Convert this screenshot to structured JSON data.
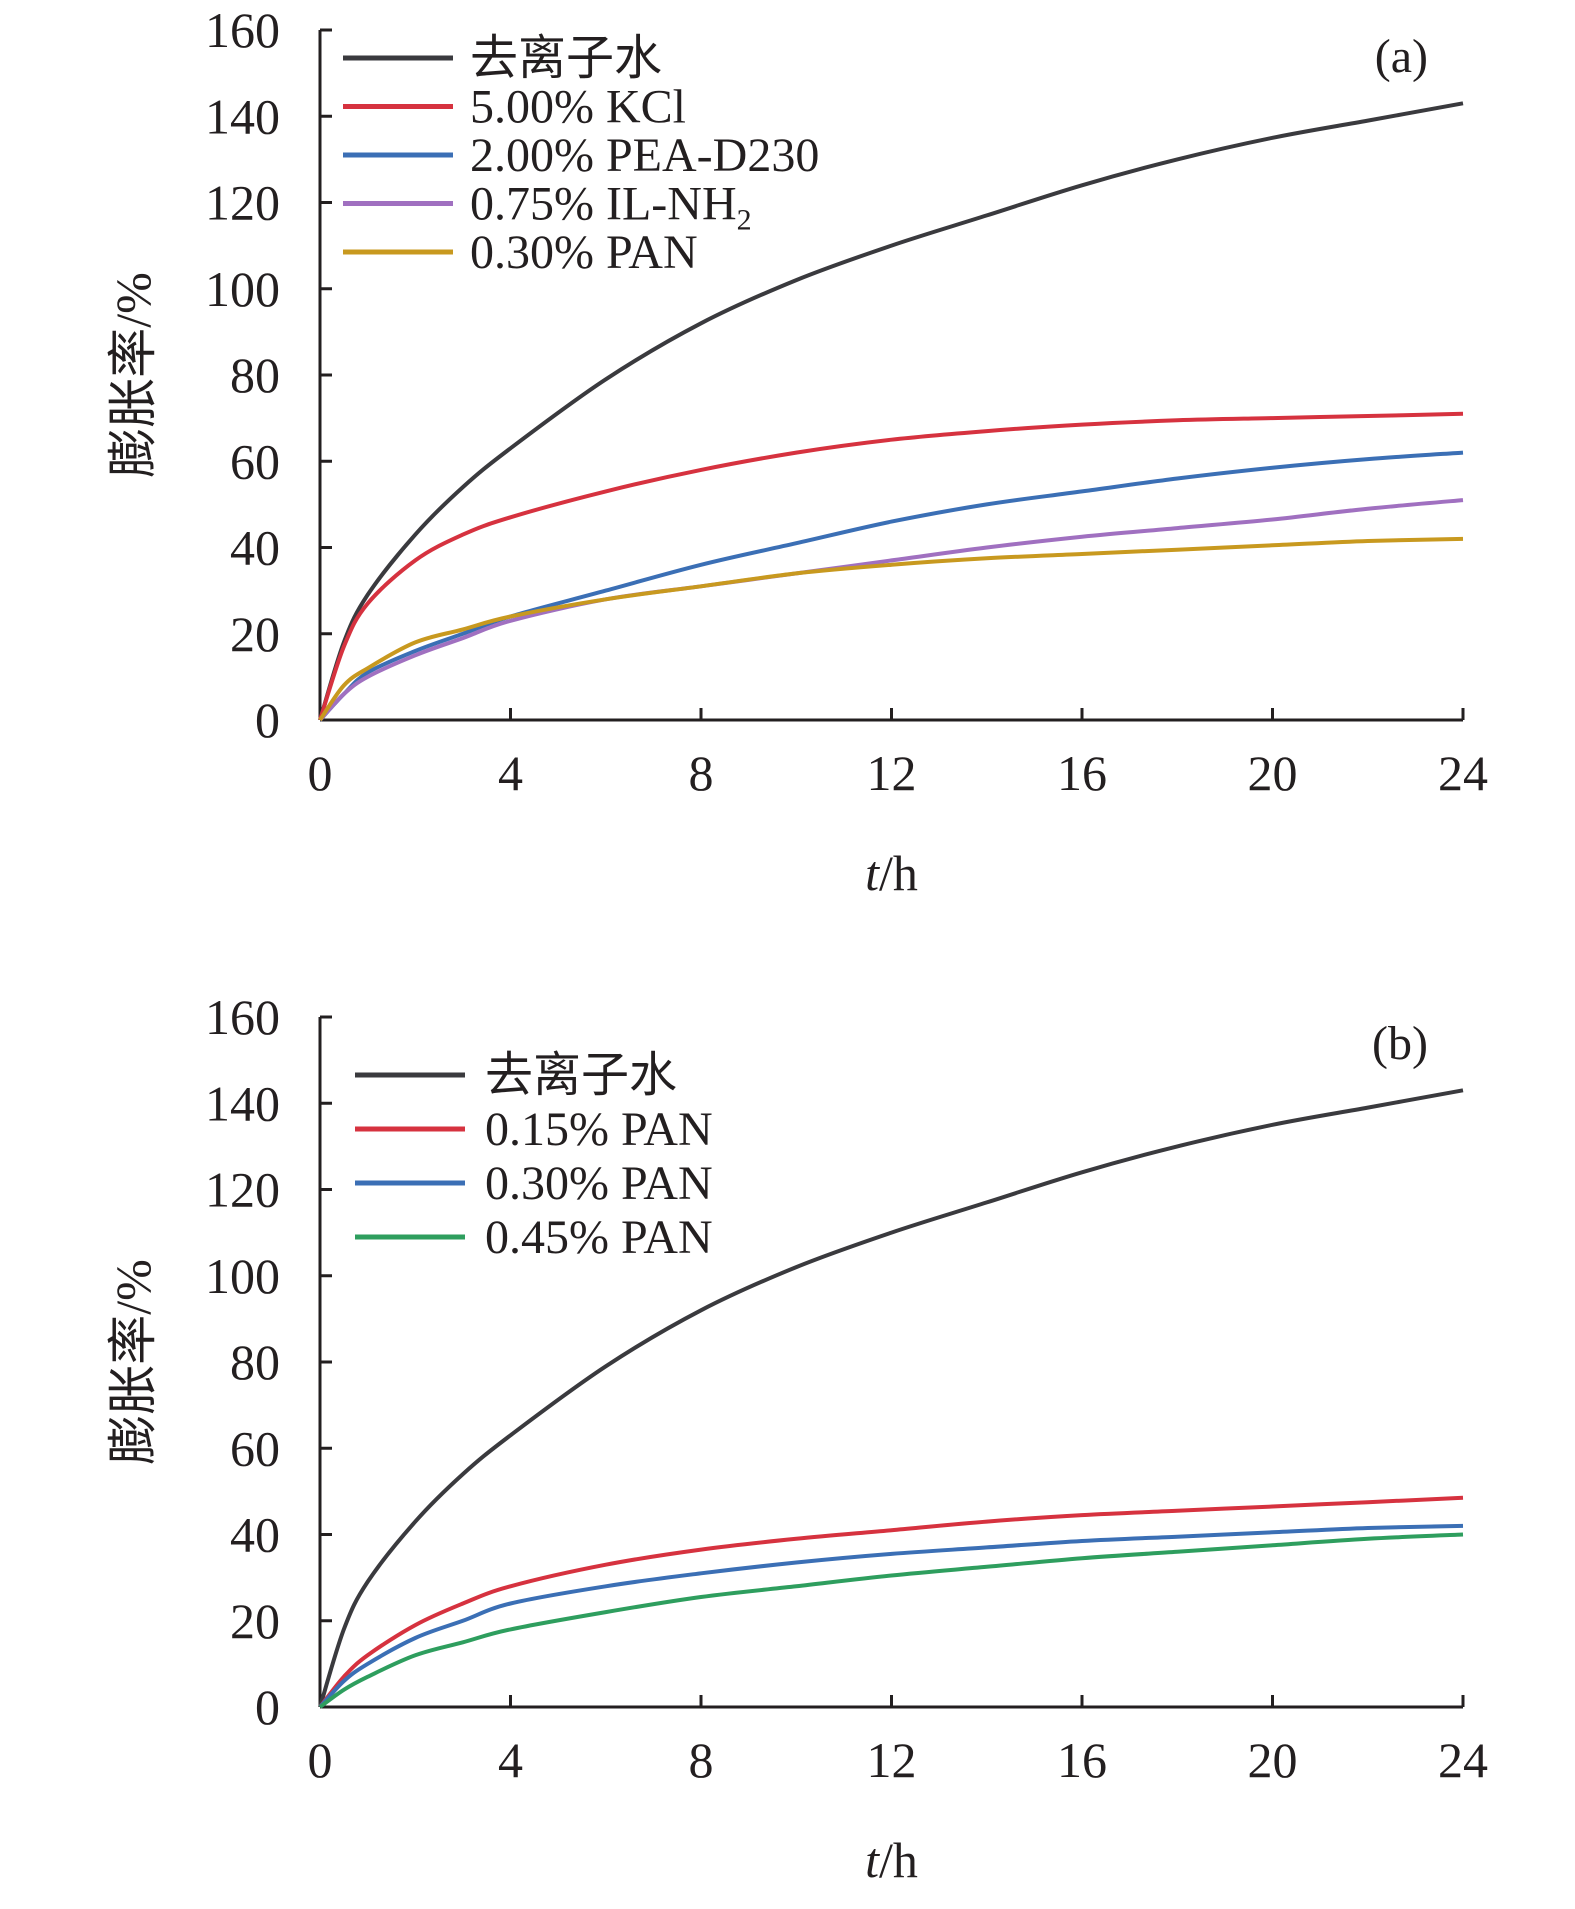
{
  "chart_data": [
    {
      "type": "line",
      "panel_label": "(a)",
      "xlabel": {
        "italic": "t",
        "rest": "/h"
      },
      "ylabel": "膨胀率/%",
      "xlim": [
        0,
        24
      ],
      "ylim": [
        0,
        160
      ],
      "xticks": [
        0,
        4,
        8,
        12,
        16,
        20,
        24
      ],
      "yticks": [
        0,
        20,
        40,
        60,
        80,
        100,
        120,
        140,
        160
      ],
      "grid": false,
      "legend_position": "top-left",
      "x": [
        0,
        0.5,
        1,
        2,
        3,
        4,
        6,
        8,
        10,
        12,
        14,
        16,
        18,
        20,
        22,
        24
      ],
      "series": [
        {
          "name": "去离子水",
          "color": "#3a3a3e",
          "values": [
            0,
            18,
            29,
            43,
            54,
            63,
            79,
            92,
            102,
            110,
            117,
            124,
            130,
            135,
            139,
            143
          ]
        },
        {
          "name": "5.00% KCl",
          "color": "#d6323f",
          "values": [
            0,
            17,
            27,
            37,
            43,
            47,
            53,
            58,
            62,
            65,
            67,
            68.5,
            69.5,
            70,
            70.5,
            71
          ]
        },
        {
          "name": "2.00% PEA-D230",
          "color": "#3b6fb5",
          "values": [
            0,
            6,
            11,
            16,
            20,
            24,
            30,
            36,
            41,
            46,
            50,
            53,
            56,
            58.5,
            60.5,
            62
          ]
        },
        {
          "name": "0.75% IL-NH",
          "name_sub": "2",
          "color": "#a070c0",
          "values": [
            0,
            6,
            10,
            15,
            19,
            23,
            28,
            31,
            34,
            37,
            40,
            42.5,
            44.5,
            46.5,
            49,
            51
          ]
        },
        {
          "name": "0.30% PAN",
          "color": "#c8991f",
          "values": [
            0,
            8,
            12,
            18,
            21,
            24,
            28,
            31,
            34,
            36,
            37.5,
            38.5,
            39.5,
            40.5,
            41.5,
            42
          ]
        }
      ]
    },
    {
      "type": "line",
      "panel_label": "(b)",
      "xlabel": {
        "italic": "t",
        "rest": "/h"
      },
      "ylabel": "膨胀率/%",
      "xlim": [
        0,
        24
      ],
      "ylim": [
        0,
        160
      ],
      "xticks": [
        0,
        4,
        8,
        12,
        16,
        20,
        24
      ],
      "yticks": [
        0,
        20,
        40,
        60,
        80,
        100,
        120,
        140,
        160
      ],
      "grid": false,
      "legend_position": "top-left",
      "x": [
        0,
        0.5,
        1,
        2,
        3,
        4,
        6,
        8,
        10,
        12,
        14,
        16,
        18,
        20,
        22,
        24
      ],
      "series": [
        {
          "name": "去离子水",
          "color": "#3a3a3e",
          "values": [
            0,
            18,
            29,
            43,
            54,
            63,
            79,
            92,
            102,
            110,
            117,
            124,
            130,
            135,
            139,
            143
          ]
        },
        {
          "name": "0.15% PAN",
          "color": "#d6323f",
          "values": [
            0,
            7,
            12,
            19,
            24,
            28,
            33,
            36.5,
            39,
            41,
            43,
            44.5,
            45.5,
            46.5,
            47.5,
            48.5
          ]
        },
        {
          "name": "0.30% PAN",
          "color": "#3b6fb5",
          "values": [
            0,
            6,
            10,
            16,
            20,
            24,
            28,
            31,
            33.5,
            35.5,
            37,
            38.5,
            39.5,
            40.5,
            41.5,
            42
          ]
        },
        {
          "name": "0.45% PAN",
          "color": "#2e9e5e",
          "values": [
            0,
            4,
            7,
            12,
            15,
            18,
            22,
            25.5,
            28,
            30.5,
            32.5,
            34.5,
            36,
            37.5,
            39,
            40
          ]
        }
      ]
    }
  ]
}
